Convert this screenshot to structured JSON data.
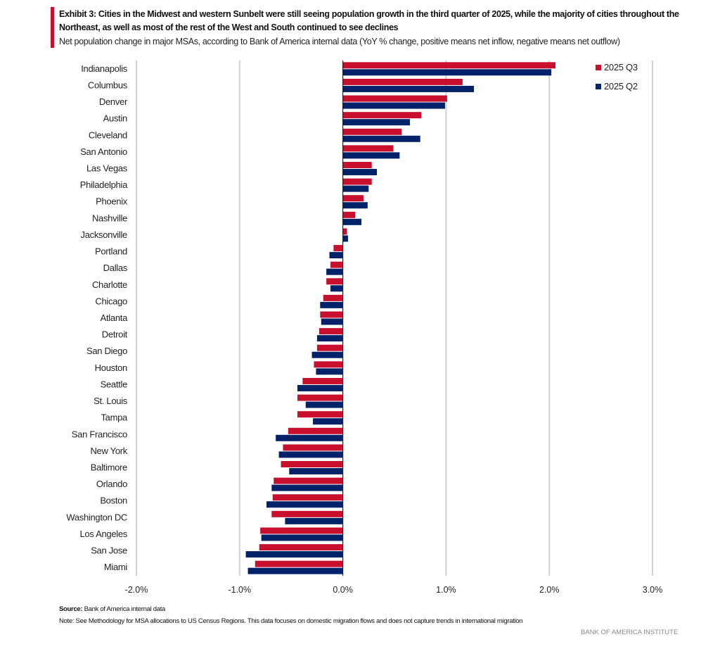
{
  "header": {
    "title": "Exhibit 3: Cities in the Midwest and western Sunbelt were still seeing population growth in the third quarter of 2025, while the majority of cities throughout the Northeast, as well as most of the rest of the West and South  continued to see declines",
    "subtitle": "Net population change in major MSAs, according to Bank of America internal data (YoY % change, positive means net inflow, negative means net outflow)"
  },
  "footer": {
    "source_label": "Source:",
    "source_text": " Bank of America internal data",
    "note": "Note: See Methodology for MSA allocations to US Census Regions. This data focuses on domestic migration flows and does not capture trends in international migration",
    "brand": "BANK OF AMERICA INSTITUTE"
  },
  "colors": {
    "q3": "#c8102e",
    "q2": "#012169",
    "grid": "#d0d0d0",
    "axis": "#222222",
    "accent": "#c8102e"
  },
  "chart_data": {
    "type": "bar",
    "orientation": "horizontal",
    "title": "",
    "xlabel": "",
    "ylabel": "",
    "xlim": [
      -2,
      3
    ],
    "x_ticks": [
      -2,
      -1,
      0,
      1,
      2,
      3
    ],
    "x_tick_labels": [
      "-2.0%",
      "-1.0%",
      "0.0%",
      "1.0%",
      "2.0%",
      "3.0%"
    ],
    "grid": "vertical",
    "legend_position": "top-right",
    "categories": [
      "Indianapolis",
      "Columbus",
      "Denver",
      "Austin",
      "Cleveland",
      "San Antonio",
      "Las Vegas",
      "Philadelphia",
      "Phoenix",
      "Nashville",
      "Jacksonville",
      "Portland",
      "Dallas",
      "Charlotte",
      "Chicago",
      "Atlanta",
      "Detroit",
      "San Diego",
      "Houston",
      "Seattle",
      "St. Louis",
      "Tampa",
      "San Francisco",
      "New York",
      "Baltimore",
      "Orlando",
      "Boston",
      "Washington DC",
      "Los Angeles",
      "San Jose",
      "Miami"
    ],
    "series": [
      {
        "name": "2025 Q3",
        "color": "#c8102e",
        "values": [
          2.06,
          1.16,
          1.01,
          0.76,
          0.57,
          0.49,
          0.28,
          0.28,
          0.2,
          0.12,
          0.04,
          -0.09,
          -0.12,
          -0.16,
          -0.19,
          -0.22,
          -0.23,
          -0.25,
          -0.28,
          -0.39,
          -0.44,
          -0.44,
          -0.53,
          -0.58,
          -0.6,
          -0.67,
          -0.68,
          -0.69,
          -0.8,
          -0.81,
          -0.85
        ]
      },
      {
        "name": "2025 Q2",
        "color": "#012169",
        "values": [
          2.02,
          1.27,
          0.99,
          0.65,
          0.75,
          0.55,
          0.33,
          0.25,
          0.24,
          0.18,
          0.05,
          -0.13,
          -0.16,
          -0.12,
          -0.22,
          -0.21,
          -0.25,
          -0.3,
          -0.26,
          -0.44,
          -0.36,
          -0.29,
          -0.65,
          -0.62,
          -0.52,
          -0.69,
          -0.74,
          -0.56,
          -0.79,
          -0.94,
          -0.92
        ]
      }
    ]
  }
}
